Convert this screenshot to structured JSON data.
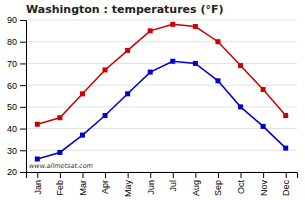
{
  "chart_data": {
    "type": "line",
    "title": "Washington : temperatures (°F)",
    "categories": [
      "Jan",
      "Feb",
      "Mar",
      "Apr",
      "May",
      "Jun",
      "Jul",
      "Aug",
      "Sep",
      "Oct",
      "Nov",
      "Dec"
    ],
    "series": [
      {
        "color": "#cc0000",
        "marker": "square",
        "values": [
          42,
          45,
          56,
          67,
          76,
          85,
          88,
          87,
          80,
          69,
          58,
          46
        ]
      },
      {
        "color": "#0000cc",
        "marker": "square",
        "values": [
          26,
          29,
          37,
          46,
          56,
          66,
          71,
          70,
          62,
          50,
          41,
          31
        ]
      }
    ],
    "ylim": [
      20,
      90
    ],
    "yticks": [
      20,
      30,
      40,
      50,
      60,
      70,
      80,
      90
    ],
    "grid": true,
    "annotations": [
      {
        "text": "www.allmetsat.com"
      }
    ]
  }
}
